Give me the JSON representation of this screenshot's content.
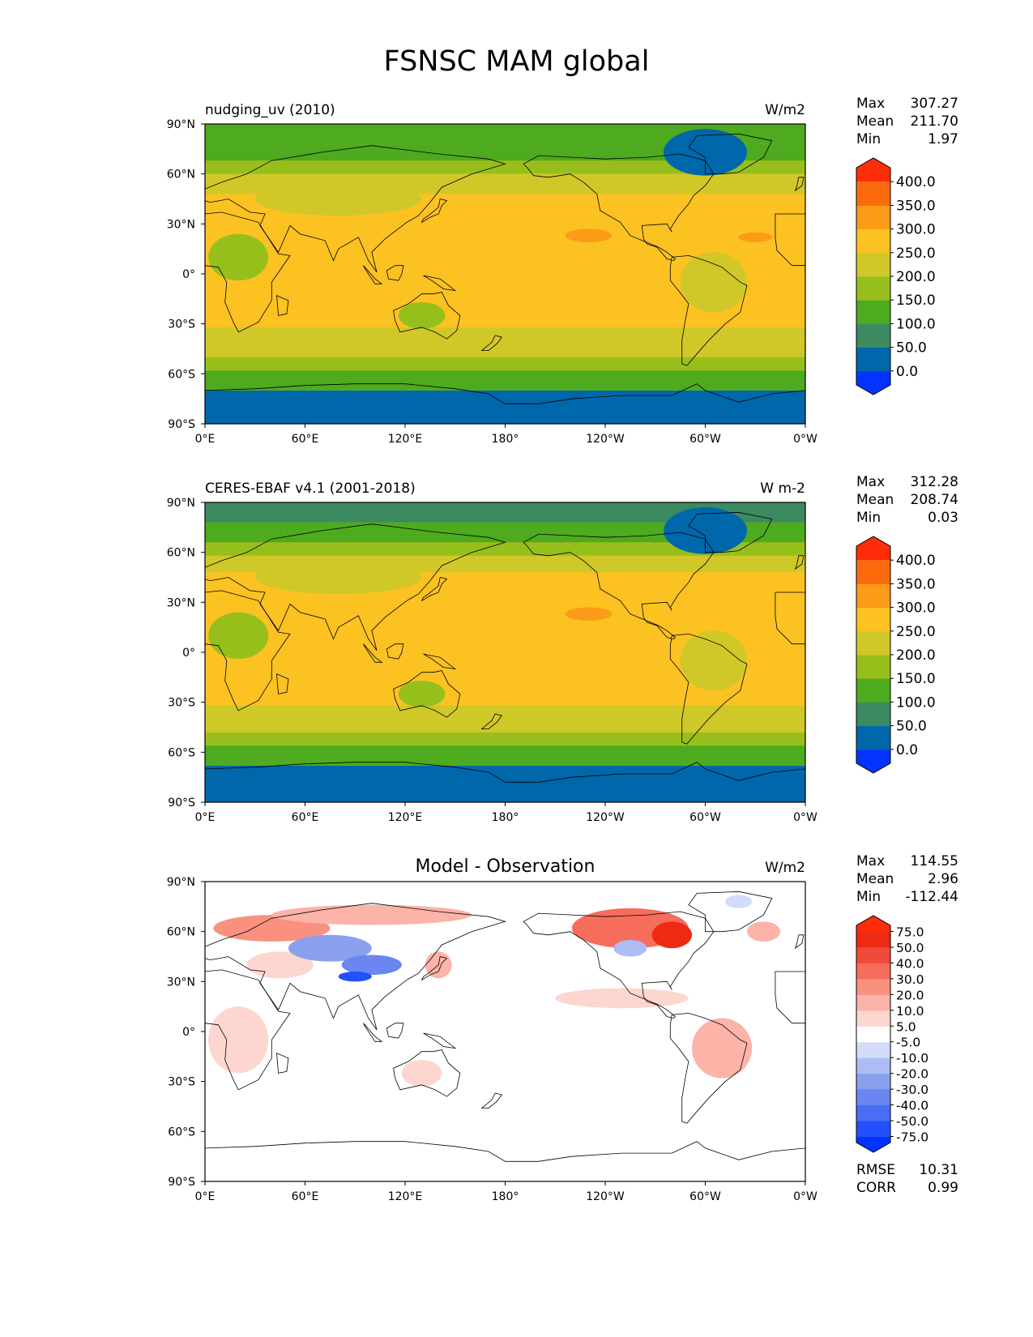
{
  "figure": {
    "title": "FSNSC MAM global"
  },
  "axes": {
    "lat_labels": [
      "90°N",
      "60°N",
      "30°N",
      "0°",
      "30°S",
      "60°S",
      "90°S"
    ],
    "lon_labels": [
      "0°E",
      "60°E",
      "120°E",
      "180°",
      "120°W",
      "60°W",
      "0°W"
    ]
  },
  "chart_data": [
    {
      "type": "heatmap",
      "left_title": "nudging_uv (2010)",
      "center_title": "",
      "units": "W/m2",
      "stats": [
        {
          "label": "Max",
          "value": "307.27"
        },
        {
          "label": "Mean",
          "value": "211.70"
        },
        {
          "label": "Min",
          "value": "1.97"
        }
      ],
      "colorbar": {
        "levels": [
          "0.0",
          "50.0",
          "100.0",
          "150.0",
          "200.0",
          "250.0",
          "300.0",
          "350.0",
          "400.0"
        ],
        "colors": [
          "#0433ff",
          "#0067ab",
          "#3b8a60",
          "#4eaa1e",
          "#97bf1c",
          "#d0c828",
          "#fbc222",
          "#fb9b17",
          "#fb6a0d",
          "#ff2d0a"
        ]
      },
      "zonal_bands": [
        {
          "lat_from": -90,
          "lat_to": -70,
          "value": 30
        },
        {
          "lat_from": -70,
          "lat_to": -58,
          "value": 130
        },
        {
          "lat_from": -58,
          "lat_to": -50,
          "value": 170
        },
        {
          "lat_from": -50,
          "lat_to": -40,
          "value": 210
        },
        {
          "lat_from": -40,
          "lat_to": -32,
          "value": 235
        },
        {
          "lat_from": -32,
          "lat_to": 48,
          "value": 275
        },
        {
          "lat_from": 48,
          "lat_to": 60,
          "value": 225
        },
        {
          "lat_from": 60,
          "lat_to": 68,
          "value": 175
        },
        {
          "lat_from": 68,
          "lat_to": 78,
          "value": 125
        },
        {
          "lat_from": 78,
          "lat_to": 90,
          "value": 110
        }
      ]
    },
    {
      "type": "heatmap",
      "left_title": "CERES-EBAF v4.1 (2001-2018)",
      "center_title": "",
      "units": "W m-2",
      "stats": [
        {
          "label": "Max",
          "value": "312.28"
        },
        {
          "label": "Mean",
          "value": "208.74"
        },
        {
          "label": "Min",
          "value": "0.03"
        }
      ],
      "colorbar": {
        "levels": [
          "0.0",
          "50.0",
          "100.0",
          "150.0",
          "200.0",
          "250.0",
          "300.0",
          "350.0",
          "400.0"
        ],
        "colors": [
          "#0433ff",
          "#0067ab",
          "#3b8a60",
          "#4eaa1e",
          "#97bf1c",
          "#d0c828",
          "#fbc222",
          "#fb9b17",
          "#fb6a0d",
          "#ff2d0a"
        ]
      },
      "zonal_bands": [
        {
          "lat_from": -90,
          "lat_to": -68,
          "value": 30
        },
        {
          "lat_from": -68,
          "lat_to": -56,
          "value": 120
        },
        {
          "lat_from": -56,
          "lat_to": -48,
          "value": 170
        },
        {
          "lat_from": -48,
          "lat_to": -40,
          "value": 210
        },
        {
          "lat_from": -40,
          "lat_to": -32,
          "value": 230
        },
        {
          "lat_from": -32,
          "lat_to": 48,
          "value": 275
        },
        {
          "lat_from": 48,
          "lat_to": 58,
          "value": 225
        },
        {
          "lat_from": 58,
          "lat_to": 66,
          "value": 175
        },
        {
          "lat_from": 66,
          "lat_to": 78,
          "value": 125
        },
        {
          "lat_from": 78,
          "lat_to": 90,
          "value": 80
        }
      ]
    },
    {
      "type": "heatmap",
      "left_title": "",
      "center_title": "Model - Observation",
      "units": "W/m2",
      "stats": [
        {
          "label": "Max",
          "value": "114.55"
        },
        {
          "label": "Mean",
          "value": "2.96"
        },
        {
          "label": "Min",
          "value": "-112.44"
        }
      ],
      "footer_stats": [
        {
          "label": "RMSE",
          "value": "10.31"
        },
        {
          "label": "CORR",
          "value": "0.99"
        }
      ],
      "colorbar": {
        "levels": [
          "-75.0",
          "-50.0",
          "-40.0",
          "-30.0",
          "-20.0",
          "-10.0",
          "-5.0",
          "5.0",
          "10.0",
          "20.0",
          "30.0",
          "40.0",
          "50.0",
          "75.0"
        ],
        "colors": [
          "#0433ff",
          "#2350ff",
          "#4a6df5",
          "#6a86f0",
          "#8aa0ef",
          "#adbcf4",
          "#d3dcfa",
          "#ffffff",
          "#fdd6d0",
          "#fcb3a8",
          "#fa9080",
          "#f66d5c",
          "#f24a3a",
          "#ef2a14",
          "#ff2d0a"
        ]
      },
      "zonal_bands": []
    }
  ],
  "colors": {
    "ocean_bg": "#fbc222",
    "coast": "#000000"
  }
}
